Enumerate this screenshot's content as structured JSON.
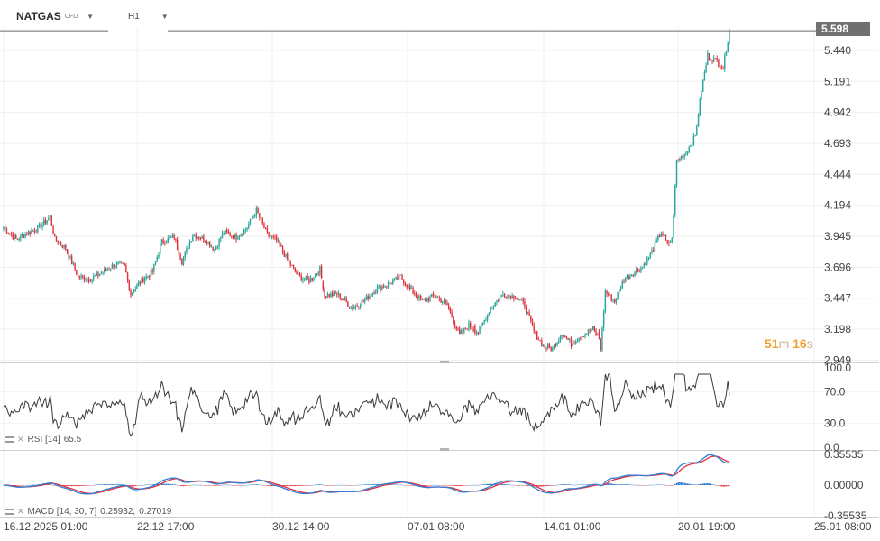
{
  "header": {
    "symbol": "NATGAS",
    "symbol_type": "CFD",
    "timeframe": "H1"
  },
  "current_price": "5.598",
  "countdown": {
    "minutes": "51",
    "minutes_unit": "m",
    "seconds": "16",
    "seconds_unit": "s"
  },
  "rsi_label": {
    "name": "RSI [14]",
    "value": "65.5"
  },
  "macd_label": {
    "name": "MACD [14,  30,  7]",
    "value1": "0.25932,",
    "value2": "0.27019"
  },
  "colors": {
    "up": "#26a69a",
    "down": "#e0313a",
    "rsi_line": "#3a3a3a",
    "macd_line": "#2f7fd8",
    "signal_line": "#e0313a",
    "hist_pos": "#1f6fc4",
    "hist_neg": "#e0313a",
    "price_tag": "#707070",
    "grid": "#eeeeee"
  },
  "chart_data": {
    "type": "candlestick",
    "price_axis_ticks": [
      "5.440",
      "5.191",
      "4.942",
      "4.693",
      "4.444",
      "4.194",
      "3.945",
      "3.696",
      "3.447",
      "3.198",
      "2.949"
    ],
    "price_range": [
      2.93,
      5.65
    ],
    "time_axis_labels": [
      "16.12.2025  01:00",
      "22.12  17:00",
      "30.12  14:00",
      "07.01  08:00",
      "14.01  01:00",
      "20.01  19:00",
      "25.01  08:00"
    ],
    "anchors": [
      [
        0,
        4.02
      ],
      [
        8,
        3.92
      ],
      [
        15,
        3.97
      ],
      [
        22,
        4.01
      ],
      [
        30,
        4.1
      ],
      [
        33,
        3.92
      ],
      [
        40,
        3.85
      ],
      [
        48,
        3.62
      ],
      [
        56,
        3.6
      ],
      [
        64,
        3.66
      ],
      [
        72,
        3.72
      ],
      [
        78,
        3.7
      ],
      [
        82,
        3.48
      ],
      [
        88,
        3.58
      ],
      [
        96,
        3.66
      ],
      [
        102,
        3.9
      ],
      [
        110,
        3.94
      ],
      [
        115,
        3.74
      ],
      [
        122,
        3.96
      ],
      [
        130,
        3.92
      ],
      [
        136,
        3.84
      ],
      [
        142,
        3.98
      ],
      [
        150,
        3.94
      ],
      [
        156,
        4.0
      ],
      [
        163,
        4.15
      ],
      [
        170,
        3.96
      ],
      [
        176,
        3.91
      ],
      [
        182,
        3.78
      ],
      [
        190,
        3.62
      ],
      [
        197,
        3.59
      ],
      [
        204,
        3.68
      ],
      [
        207,
        3.47
      ],
      [
        215,
        3.48
      ],
      [
        225,
        3.37
      ],
      [
        232,
        3.42
      ],
      [
        240,
        3.52
      ],
      [
        248,
        3.56
      ],
      [
        256,
        3.62
      ],
      [
        262,
        3.52
      ],
      [
        270,
        3.42
      ],
      [
        278,
        3.47
      ],
      [
        286,
        3.39
      ],
      [
        294,
        3.15
      ],
      [
        300,
        3.23
      ],
      [
        306,
        3.17
      ],
      [
        314,
        3.37
      ],
      [
        322,
        3.48
      ],
      [
        330,
        3.46
      ],
      [
        336,
        3.39
      ],
      [
        342,
        3.18
      ],
      [
        348,
        3.06
      ],
      [
        354,
        3.04
      ],
      [
        360,
        3.17
      ],
      [
        366,
        3.08
      ],
      [
        372,
        3.14
      ],
      [
        380,
        3.2
      ],
      [
        384,
        3.12
      ],
      [
        385,
        3.04
      ],
      [
        388,
        3.5
      ],
      [
        394,
        3.42
      ],
      [
        400,
        3.6
      ],
      [
        407,
        3.66
      ],
      [
        412,
        3.7
      ],
      [
        418,
        3.82
      ],
      [
        424,
        3.98
      ],
      [
        428,
        3.88
      ],
      [
        431,
        3.92
      ],
      [
        434,
        4.55
      ],
      [
        440,
        4.62
      ],
      [
        446,
        4.75
      ],
      [
        450,
        5.12
      ],
      [
        454,
        5.4
      ],
      [
        460,
        5.35
      ],
      [
        464,
        5.3
      ],
      [
        468,
        5.598
      ]
    ],
    "gaps": [
      32,
      206,
      304,
      384
    ],
    "rsi": {
      "range": [
        0,
        100
      ],
      "ticks": [
        "100.0",
        "70.0",
        "30.0",
        "0.0"
      ],
      "last": 65.5
    },
    "macd": {
      "ticks": [
        "0.35535",
        "0.00000",
        "-0.35535"
      ],
      "range": [
        -0.35535,
        0.35535
      ],
      "macd_last": 0.25932,
      "signal_last": 0.27019
    }
  }
}
